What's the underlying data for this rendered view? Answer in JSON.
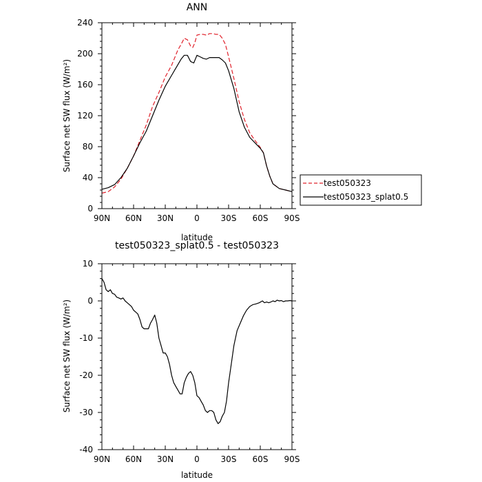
{
  "chart_data": [
    {
      "type": "line",
      "title": "ANN",
      "xlabel": "latitude",
      "ylabel": "Surface net SW flux (W/m²)",
      "xlim": [
        90,
        -90
      ],
      "ylim": [
        0,
        240
      ],
      "x_ticks": [
        90,
        60,
        30,
        0,
        -30,
        -60,
        -90
      ],
      "x_tick_labels": [
        "90N",
        "60N",
        "30N",
        "0",
        "30S",
        "60S",
        "90S"
      ],
      "y_ticks": [
        0,
        40,
        80,
        120,
        160,
        200,
        240
      ],
      "y_tick_labels": [
        "0",
        "40",
        "80",
        "120",
        "160",
        "200",
        "240"
      ],
      "grid": false,
      "legend_position": "right",
      "series": [
        {
          "name": "test050323",
          "color": "#e0202a",
          "dash": "dashed",
          "x": [
            90,
            84,
            78,
            72,
            66,
            60,
            54,
            48,
            42,
            36,
            30,
            24,
            18,
            15,
            12,
            9,
            6,
            4,
            2,
            0,
            -3,
            -6,
            -9,
            -12,
            -15,
            -18,
            -21,
            -24,
            -27,
            -30,
            -35,
            -40,
            -45,
            -50,
            -55,
            -60,
            -63,
            -66,
            -69,
            -72,
            -78,
            -84,
            -90
          ],
          "y": [
            20,
            22,
            28,
            38,
            52,
            68,
            88,
            108,
            132,
            150,
            170,
            185,
            205,
            212,
            220,
            218,
            210,
            208,
            214,
            224,
            225,
            225,
            224,
            226,
            226,
            225,
            225,
            220,
            212,
            196,
            168,
            138,
            115,
            98,
            88,
            79,
            72,
            55,
            42,
            32,
            26,
            24,
            22
          ]
        },
        {
          "name": "test050323_splat0.5",
          "color": "#000000",
          "dash": "solid",
          "x": [
            90,
            84,
            78,
            72,
            66,
            60,
            54,
            48,
            42,
            36,
            30,
            24,
            18,
            15,
            12,
            9,
            6,
            3,
            0,
            -3,
            -6,
            -9,
            -12,
            -15,
            -18,
            -21,
            -24,
            -27,
            -30,
            -35,
            -40,
            -45,
            -50,
            -55,
            -60,
            -63,
            -66,
            -69,
            -72,
            -78,
            -84,
            -90
          ],
          "y": [
            25,
            27,
            31,
            40,
            52,
            68,
            85,
            100,
            120,
            140,
            158,
            172,
            186,
            193,
            198,
            198,
            190,
            188,
            198,
            196,
            194,
            193,
            195,
            195,
            195,
            195,
            192,
            188,
            178,
            155,
            125,
            105,
            92,
            85,
            78,
            72,
            55,
            42,
            32,
            26,
            24,
            22
          ]
        }
      ]
    },
    {
      "type": "line",
      "title": "test050323_splat0.5 - test050323",
      "xlabel": "latitude",
      "ylabel": "Surface net SW flux (W/m²)",
      "xlim": [
        90,
        -90
      ],
      "ylim": [
        -40,
        10
      ],
      "x_ticks": [
        90,
        60,
        30,
        0,
        -30,
        -60,
        -90
      ],
      "x_tick_labels": [
        "90N",
        "60N",
        "30N",
        "0",
        "30S",
        "60S",
        "90S"
      ],
      "y_ticks": [
        -40,
        -30,
        -20,
        -10,
        0,
        10
      ],
      "y_tick_labels": [
        "-40",
        "-30",
        "-20",
        "-10",
        "0",
        "10"
      ],
      "grid": false,
      "series": [
        {
          "name": "",
          "color": "#000000",
          "dash": "solid",
          "x": [
            90,
            88,
            86,
            84,
            82,
            80,
            78,
            76,
            74,
            72,
            70,
            68,
            66,
            64,
            62,
            60,
            58,
            56,
            54,
            52,
            50,
            48,
            46,
            44,
            42,
            40,
            38,
            36,
            34,
            32,
            30,
            28,
            26,
            24,
            22,
            20,
            18,
            16,
            14,
            12,
            10,
            8,
            6,
            4,
            2,
            0,
            -2,
            -4,
            -6,
            -8,
            -10,
            -12,
            -14,
            -16,
            -18,
            -20,
            -22,
            -24,
            -26,
            -28,
            -30,
            -32,
            -35,
            -38,
            -41,
            -44,
            -47,
            -50,
            -53,
            -56,
            -59,
            -62,
            -64,
            -66,
            -68,
            -70,
            -72,
            -74,
            -76,
            -78,
            -80,
            -82,
            -84,
            -86,
            -88,
            -90
          ],
          "y": [
            6,
            5,
            3,
            2.5,
            3,
            2,
            1.8,
            1,
            0.8,
            0.5,
            0.8,
            0,
            -0.5,
            -1,
            -1.5,
            -2.5,
            -3,
            -3.5,
            -5,
            -7,
            -7.5,
            -7.5,
            -7.5,
            -6,
            -5,
            -3.8,
            -6,
            -10,
            -12,
            -14,
            -14,
            -15,
            -17,
            -20,
            -22,
            -23,
            -24,
            -25,
            -25,
            -22,
            -20.5,
            -19.5,
            -19,
            -20,
            -22,
            -25.5,
            -26,
            -27,
            -28,
            -29.5,
            -30,
            -29.5,
            -29.5,
            -30,
            -32,
            -33,
            -32.5,
            -31,
            -30,
            -27,
            -22,
            -18,
            -12,
            -8,
            -6,
            -4,
            -2.5,
            -1.5,
            -1,
            -0.8,
            -0.5,
            0,
            -0.5,
            -0.3,
            -0.5,
            -0.3,
            0,
            -0.2,
            0.2,
            0,
            0.1,
            -0.2,
            0,
            0,
            0.1,
            0
          ]
        }
      ]
    }
  ]
}
